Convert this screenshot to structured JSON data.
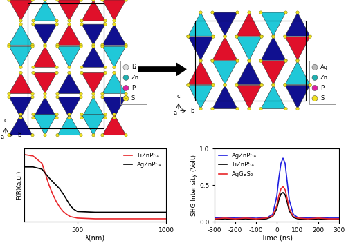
{
  "structures": [
    {
      "legend": [
        "Li",
        "Zn",
        "P",
        "S"
      ],
      "axes": [
        "a",
        "b",
        "c"
      ]
    },
    {
      "legend": [
        "Ag",
        "Zn",
        "P",
        "S"
      ],
      "axes": [
        "a",
        "b",
        "c"
      ]
    }
  ],
  "chart_data": [
    {
      "type": "line",
      "x_label": "λ(nm)",
      "y_label": "F(R)(a.u.)",
      "x": [
        200,
        250,
        300,
        320,
        340,
        360,
        380,
        400,
        420,
        440,
        460,
        480,
        500,
        600,
        700,
        800,
        900,
        1000
      ],
      "series": [
        {
          "name": "LiZnPS₄",
          "color": "#e8262a",
          "values": [
            0.92,
            0.9,
            0.8,
            0.65,
            0.5,
            0.38,
            0.28,
            0.2,
            0.14,
            0.1,
            0.07,
            0.06,
            0.05,
            0.04,
            0.04,
            0.04,
            0.04,
            0.04
          ]
        },
        {
          "name": "AgZnPS₄",
          "color": "#000000",
          "values": [
            0.75,
            0.75,
            0.72,
            0.66,
            0.6,
            0.55,
            0.5,
            0.45,
            0.38,
            0.3,
            0.22,
            0.17,
            0.14,
            0.13,
            0.13,
            0.13,
            0.13,
            0.13
          ]
        }
      ],
      "xlim": [
        200,
        1000
      ],
      "xticks": [
        500,
        1000
      ],
      "ylim": [
        0,
        1
      ],
      "tick_labels": "x",
      "legend": "upper right"
    },
    {
      "type": "line",
      "x_label": "Time (ns)",
      "y_label": "SHG Intensity (Volt)",
      "x": [
        -300,
        -250,
        -200,
        -150,
        -100,
        -50,
        -20,
        0,
        10,
        20,
        30,
        40,
        50,
        60,
        80,
        100,
        150,
        200,
        250,
        300
      ],
      "series": [
        {
          "name": "AgZnPS₄",
          "color": "#1f1fe0",
          "values": [
            0.05,
            0.06,
            0.05,
            0.05,
            0.06,
            0.05,
            0.1,
            0.35,
            0.6,
            0.8,
            0.87,
            0.8,
            0.55,
            0.3,
            0.1,
            0.06,
            0.05,
            0.06,
            0.05,
            0.05
          ]
        },
        {
          "name": "LiZnPS₄",
          "color": "#000000",
          "values": [
            0.03,
            0.04,
            0.03,
            0.04,
            0.03,
            0.04,
            0.07,
            0.18,
            0.3,
            0.38,
            0.4,
            0.37,
            0.27,
            0.15,
            0.06,
            0.04,
            0.03,
            0.04,
            0.03,
            0.03
          ]
        },
        {
          "name": "AgGaS₂",
          "color": "#e8262a",
          "values": [
            0.04,
            0.05,
            0.04,
            0.05,
            0.04,
            0.05,
            0.08,
            0.22,
            0.36,
            0.45,
            0.48,
            0.44,
            0.32,
            0.18,
            0.07,
            0.05,
            0.04,
            0.05,
            0.04,
            0.04
          ]
        }
      ],
      "xlim": [
        -300,
        300
      ],
      "xticks": [
        -300,
        -200,
        -100,
        0,
        100,
        200,
        300
      ],
      "ylim": [
        0,
        1.0
      ],
      "yticks": [
        {
          "value": 0,
          "label": "0.0"
        },
        {
          "value": 0.5,
          "label": "0.5"
        },
        {
          "value": 1.0,
          "label": "1.0"
        }
      ],
      "legend": "upper left"
    }
  ]
}
